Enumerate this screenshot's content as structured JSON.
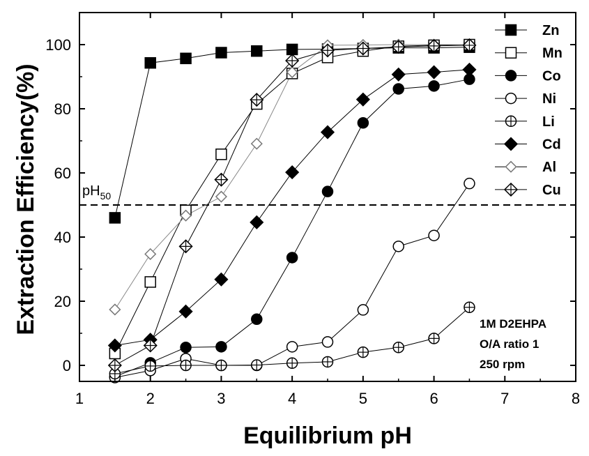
{
  "chart_data": {
    "type": "scatter",
    "xlabel": "Equilibrium pH",
    "ylabel": "Extraction Efficiency(%)",
    "xlim": [
      1,
      8
    ],
    "ylim": [
      -5,
      110
    ],
    "xticks": [
      1,
      2,
      3,
      4,
      5,
      6,
      7,
      8
    ],
    "yticks": [
      0,
      20,
      40,
      60,
      80,
      100
    ],
    "grid": false,
    "legend_position": "top-right",
    "reference_line": {
      "y": 50,
      "style": "dashed",
      "label_main": "pH",
      "label_sub": "50"
    },
    "annotations": [
      "1M D2EHPA",
      "O/A ratio 1",
      "250 rpm"
    ],
    "series": [
      {
        "name": "Zn",
        "marker": "square-filled",
        "x": [
          1.5,
          2.0,
          2.5,
          3.0,
          3.5,
          4.0,
          4.5,
          5.0,
          5.5,
          6.0,
          6.5
        ],
        "y": [
          46,
          94.3,
          95.7,
          97.5,
          98,
          98.5,
          98.6,
          98.8,
          99,
          99,
          99.2
        ]
      },
      {
        "name": "Mn",
        "marker": "square-open",
        "x": [
          1.5,
          2.0,
          2.5,
          3.0,
          3.5,
          4.0,
          4.5,
          5.0,
          5.5,
          6.0,
          6.5
        ],
        "y": [
          3.7,
          26,
          48.3,
          65.8,
          81.5,
          91,
          96,
          98,
          99.5,
          99.8,
          100
        ]
      },
      {
        "name": "Co",
        "marker": "circle-filled",
        "x": [
          1.5,
          2.0,
          2.5,
          3.0,
          3.5,
          4.0,
          4.5,
          5.0,
          5.5,
          6.0,
          6.5
        ],
        "y": [
          -3.5,
          0.8,
          5.6,
          5.8,
          14.4,
          33.6,
          54.2,
          75.6,
          86.2,
          87.1,
          89.2
        ]
      },
      {
        "name": "Ni",
        "marker": "circle-open",
        "x": [
          1.5,
          2.0,
          2.5,
          3.0,
          3.5,
          4.0,
          4.5,
          5.0,
          5.5,
          6.0,
          6.5
        ],
        "y": [
          -3.8,
          -1.6,
          2.1,
          0,
          0,
          5.8,
          7.3,
          17.3,
          37.1,
          40.5,
          56.7
        ]
      },
      {
        "name": "Li",
        "marker": "circle-cross",
        "x": [
          1.5,
          2.0,
          2.5,
          3.0,
          3.5,
          4.0,
          4.5,
          5.0,
          5.5,
          6.0,
          6.5
        ],
        "y": [
          -2.6,
          -0.2,
          0,
          0,
          0.1,
          0.7,
          1.1,
          4.1,
          5.6,
          8.4,
          18.1
        ]
      },
      {
        "name": "Cd",
        "marker": "diamond-filled",
        "x": [
          1.5,
          2.0,
          2.5,
          3.0,
          3.5,
          4.0,
          4.5,
          5.0,
          5.5,
          6.0,
          6.5
        ],
        "y": [
          6.2,
          8,
          16.8,
          26.8,
          44.6,
          60.2,
          72.7,
          82.9,
          90.7,
          91.4,
          92.2
        ]
      },
      {
        "name": "Al",
        "marker": "diamond-open",
        "x": [
          1.5,
          2.0,
          2.5,
          3.0,
          3.5,
          4.0,
          4.5,
          5.0,
          5.5,
          6.0,
          6.5
        ],
        "y": [
          17.4,
          34.7,
          46.7,
          52.6,
          69.1,
          91.4,
          99.8,
          99.9,
          100,
          100,
          100
        ]
      },
      {
        "name": "Cu",
        "marker": "diamond-cross",
        "x": [
          1.5,
          2.0,
          2.5,
          3.0,
          3.5,
          4.0,
          4.5,
          5.0,
          5.5,
          6.0,
          6.5
        ],
        "y": [
          0,
          6.2,
          37.1,
          57.9,
          82.8,
          95,
          98.2,
          98.8,
          99.3,
          99.6,
          99.8
        ]
      }
    ]
  }
}
